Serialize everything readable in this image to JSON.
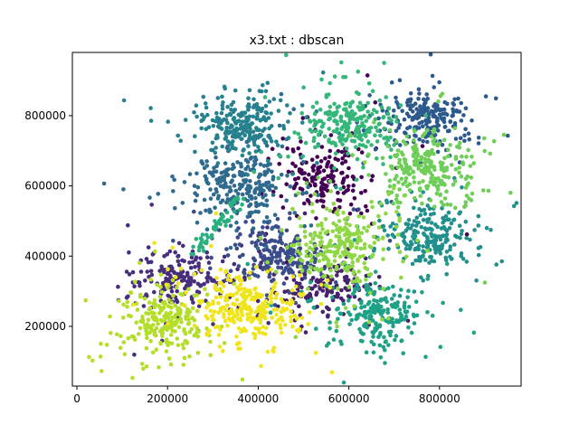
{
  "chart_data": {
    "type": "scatter",
    "title": "x3.txt : dbscan",
    "xlabel": "",
    "ylabel": "",
    "xlim": [
      -10000,
      980000
    ],
    "ylim": [
      30000,
      980000
    ],
    "x_ticks": [
      0,
      200000,
      400000,
      600000,
      800000
    ],
    "x_tick_labels": [
      "0",
      "200000",
      "400000",
      "600000",
      "800000"
    ],
    "y_ticks": [
      200000,
      400000,
      600000,
      800000
    ],
    "y_tick_labels": [
      "200000",
      "400000",
      "600000",
      "800000"
    ],
    "grid": false,
    "legend": "none",
    "colormap": "viridis",
    "clusters": [
      {
        "cx": 545000,
        "cy": 620000,
        "sx": 40000,
        "sy": 45000,
        "n": 180,
        "color": "#440154"
      },
      {
        "cx": 550000,
        "cy": 310000,
        "sx": 50000,
        "sy": 35000,
        "n": 160,
        "color": "#46226e"
      },
      {
        "cx": 220000,
        "cy": 340000,
        "sx": 50000,
        "sy": 40000,
        "n": 190,
        "color": "#472e7c"
      },
      {
        "cx": 440000,
        "cy": 410000,
        "sx": 50000,
        "sy": 40000,
        "n": 220,
        "color": "#3b4c8a"
      },
      {
        "cx": 360000,
        "cy": 600000,
        "sx": 50000,
        "sy": 50000,
        "n": 260,
        "color": "#2f6b8e"
      },
      {
        "cx": 770000,
        "cy": 790000,
        "sx": 45000,
        "sy": 40000,
        "n": 220,
        "color": "#2d5a8c"
      },
      {
        "cx": 360000,
        "cy": 770000,
        "sx": 45000,
        "sy": 40000,
        "n": 240,
        "color": "#26818e"
      },
      {
        "cx": 780000,
        "cy": 455000,
        "sx": 45000,
        "sy": 40000,
        "n": 230,
        "color": "#21908d"
      },
      {
        "cx": 665000,
        "cy": 235000,
        "sx": 45000,
        "sy": 45000,
        "n": 220,
        "color": "#1fa187"
      },
      {
        "cx": 600000,
        "cy": 770000,
        "sx": 45000,
        "sy": 40000,
        "n": 230,
        "color": "#35b779"
      },
      {
        "cx": 775000,
        "cy": 650000,
        "sx": 50000,
        "sy": 45000,
        "n": 250,
        "color": "#6ece58"
      },
      {
        "cx": 575000,
        "cy": 420000,
        "sx": 45000,
        "sy": 50000,
        "n": 260,
        "color": "#8fd744"
      },
      {
        "cx": 190000,
        "cy": 215000,
        "sx": 45000,
        "sy": 45000,
        "n": 250,
        "color": "#b5de2b"
      },
      {
        "cx": 380000,
        "cy": 255000,
        "sx": 50000,
        "sy": 45000,
        "n": 280,
        "color": "#f0e51d"
      }
    ],
    "bridge": {
      "from": [
        245000,
        395000
      ],
      "to": [
        360000,
        560000
      ],
      "n": 55,
      "spread": 9000,
      "color": "#2ab07f"
    }
  }
}
